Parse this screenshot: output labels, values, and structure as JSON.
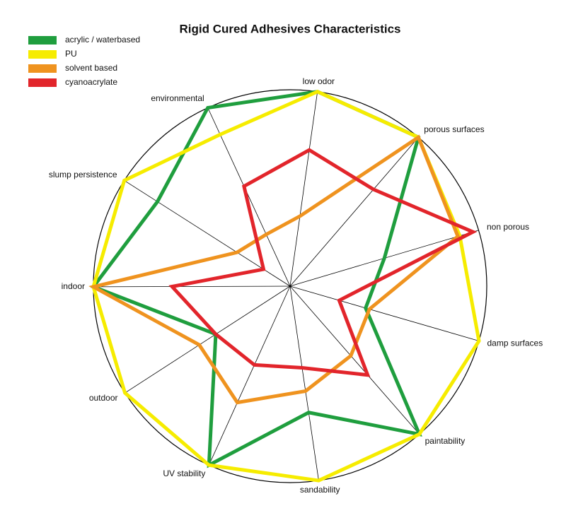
{
  "chart_data": {
    "type": "radar",
    "title": "Rigid Cured Adhesives Characteristics",
    "categories": [
      "low odor",
      "porous surfaces",
      "non porous",
      "damp surfaces",
      "paintability",
      "sandability",
      "UV stability",
      "outdoor",
      "indoor",
      "slump persistence",
      "environmental"
    ],
    "rlim": [
      0,
      10
    ],
    "series": [
      {
        "name": "acrylic / waterbased",
        "color": "#1f9e3e",
        "values": [
          10,
          10,
          5,
          4,
          10,
          6.5,
          10,
          4.5,
          10,
          8,
          10
        ]
      },
      {
        "name": "PU",
        "color": "#f6ec00",
        "values": [
          10,
          10,
          9,
          10,
          10,
          10,
          10,
          10,
          10,
          10,
          8.5
        ]
      },
      {
        "name": "solvent based",
        "color": "#ef931f",
        "values": [
          3.6,
          10,
          8.9,
          4.2,
          4.7,
          5.4,
          6.5,
          5.5,
          10,
          3.2,
          2.9
        ]
      },
      {
        "name": "cyanoacrylate",
        "color": "#e2252b",
        "values": [
          7,
          6.5,
          9.7,
          2.6,
          6,
          4.2,
          4.4,
          4.5,
          6,
          1.6,
          5.6
        ]
      }
    ]
  }
}
